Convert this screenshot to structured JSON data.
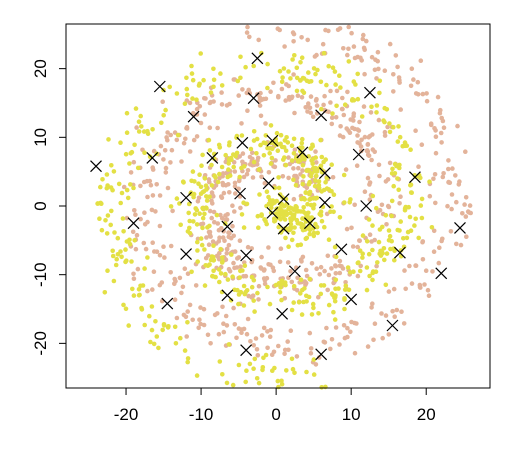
{
  "chart_data": {
    "type": "scatter",
    "title": "",
    "xlabel": "",
    "ylabel": "",
    "xlim": [
      -28,
      28.5
    ],
    "ylim": [
      -26.5,
      26.5
    ],
    "x_ticks": [
      -20,
      -10,
      0,
      10,
      20
    ],
    "y_ticks": [
      -20,
      -10,
      0,
      10,
      20
    ],
    "grid": false,
    "legend": "none",
    "series": [
      {
        "color": "#E3B39A",
        "marker": "dot",
        "spiral_center": [
          0.5,
          0.5
        ],
        "spiral_start_radius": 5,
        "spiral_end_radius": 25.5,
        "spiral_start_angle_deg": 30,
        "spiral_turns": 2.2,
        "spread": 1.6,
        "approx_points": 800
      },
      {
        "color": "#E3E044",
        "marker": "dot",
        "spiral_center": [
          0.5,
          0.5
        ],
        "spiral_start_radius": 0.5,
        "spiral_end_radius": 25.5,
        "spiral_start_angle_deg": 210,
        "spiral_turns": 2.2,
        "spread": 1.6,
        "approx_points": 800
      }
    ],
    "centers": {
      "marker": "x",
      "color": "#000000",
      "points": [
        [
          -24,
          5.8
        ],
        [
          -15.5,
          17.4
        ],
        [
          -11,
          13
        ],
        [
          -2.5,
          21.5
        ],
        [
          -3,
          15.7
        ],
        [
          6,
          13.2
        ],
        [
          12.5,
          16.5
        ],
        [
          -16.5,
          7
        ],
        [
          -8.5,
          7
        ],
        [
          -4.5,
          9.2
        ],
        [
          -0.5,
          9.5
        ],
        [
          3.5,
          7.8
        ],
        [
          6.5,
          4.8
        ],
        [
          11,
          7.5
        ],
        [
          18.5,
          4.2
        ],
        [
          -12,
          1.2
        ],
        [
          -4.8,
          1.8
        ],
        [
          -1,
          3.3
        ],
        [
          1,
          1
        ],
        [
          6.5,
          0.5
        ],
        [
          12,
          0
        ],
        [
          -19,
          -2.5
        ],
        [
          -6.5,
          -3
        ],
        [
          -0.5,
          -1
        ],
        [
          1,
          -3.3
        ],
        [
          4.5,
          -2.5
        ],
        [
          24.5,
          -3.2
        ],
        [
          -12,
          -7
        ],
        [
          -4,
          -7.2
        ],
        [
          8.7,
          -6.3
        ],
        [
          16.5,
          -6.8
        ],
        [
          2.5,
          -9.5
        ],
        [
          22,
          -9.8
        ],
        [
          -14.5,
          -14.2
        ],
        [
          -6.5,
          -13
        ],
        [
          0.8,
          -15.7
        ],
        [
          10,
          -13.6
        ],
        [
          15.5,
          -17.4
        ],
        [
          -4,
          -21
        ],
        [
          6,
          -21.6
        ]
      ]
    }
  }
}
